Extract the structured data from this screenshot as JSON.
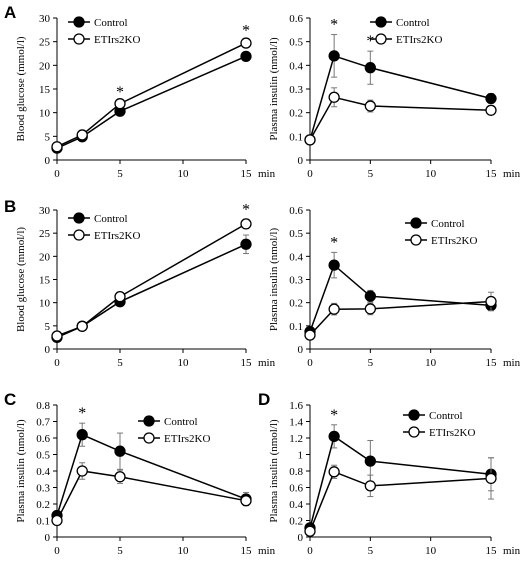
{
  "chart_data": [
    {
      "type": "line",
      "panel_label": "A",
      "ylabel": "Blood glucose (mmol/l)",
      "xunit": "min",
      "x": [
        0,
        2,
        5,
        15
      ],
      "xticks": [
        0,
        5,
        10,
        15
      ],
      "xlim": [
        0,
        15
      ],
      "ylim": [
        0,
        30
      ],
      "yticks": [
        0,
        5,
        10,
        15,
        20,
        25,
        30
      ],
      "ytick_labels": [
        "0",
        "5",
        "10",
        "15",
        "20",
        "25",
        "30"
      ],
      "legend": "top-left",
      "series": [
        {
          "name": "Control",
          "marker": "filled",
          "values": [
            2.5,
            4.9,
            10.3,
            21.9
          ],
          "errors": [
            0.2,
            0.3,
            0.4,
            0.5
          ]
        },
        {
          "name": "ETIrs2KO",
          "marker": "open",
          "values": [
            2.8,
            5.3,
            11.9,
            24.7
          ],
          "errors": [
            0.2,
            0.3,
            0.4,
            0.5
          ]
        }
      ],
      "significance": [
        {
          "x": 5,
          "label": "*"
        },
        {
          "x": 15,
          "label": "*"
        }
      ]
    },
    {
      "type": "line",
      "panel_label": "",
      "ylabel": "Plasma insulin (nmol/l)",
      "xunit": "min",
      "x": [
        0,
        2,
        5,
        15
      ],
      "xticks": [
        0,
        5,
        10,
        15
      ],
      "xlim": [
        0,
        15
      ],
      "ylim": [
        0,
        0.6
      ],
      "yticks": [
        0,
        0.1,
        0.2,
        0.3,
        0.4,
        0.5,
        0.6
      ],
      "ytick_labels": [
        "0",
        "0.1",
        "0.2",
        "0.3",
        "0.4",
        "0.5",
        "0.6"
      ],
      "legend": "top-right",
      "series": [
        {
          "name": "Control",
          "marker": "filled",
          "values": [
            0.085,
            0.44,
            0.39,
            0.26
          ],
          "errors": [
            0.01,
            0.09,
            0.07,
            0.02
          ]
        },
        {
          "name": "ETIrs2KO",
          "marker": "open",
          "values": [
            0.085,
            0.265,
            0.228,
            0.21
          ],
          "errors": [
            0.01,
            0.04,
            0.025,
            0.01
          ]
        }
      ],
      "significance": [
        {
          "x": 2,
          "label": "*"
        },
        {
          "x": 5,
          "label": "*"
        }
      ]
    },
    {
      "type": "line",
      "panel_label": "B",
      "ylabel": "Blood glucose (mmol/l)",
      "xunit": "min",
      "x": [
        0,
        2,
        5,
        15
      ],
      "xticks": [
        0,
        5,
        10,
        15
      ],
      "xlim": [
        0,
        15
      ],
      "ylim": [
        0,
        30
      ],
      "yticks": [
        0,
        5,
        10,
        15,
        20,
        25,
        30
      ],
      "ytick_labels": [
        "0",
        "5",
        "10",
        "15",
        "20",
        "25",
        "30"
      ],
      "legend": "top-left",
      "series": [
        {
          "name": "Control",
          "marker": "filled",
          "values": [
            2.5,
            4.9,
            10.2,
            22.6
          ],
          "errors": [
            0.2,
            0.3,
            0.5,
            2.0
          ]
        },
        {
          "name": "ETIrs2KO",
          "marker": "open",
          "values": [
            2.8,
            4.9,
            11.3,
            27.0
          ],
          "errors": [
            0.2,
            0.3,
            0.5,
            1.0
          ]
        }
      ],
      "significance": [
        {
          "x": 15,
          "label": "*"
        }
      ]
    },
    {
      "type": "line",
      "panel_label": "",
      "ylabel": "Plasma insulin (nmol/l)",
      "xunit": "min",
      "x": [
        0,
        2,
        5,
        15
      ],
      "xticks": [
        0,
        5,
        10,
        15
      ],
      "xlim": [
        0,
        15
      ],
      "ylim": [
        0,
        0.6
      ],
      "yticks": [
        0,
        0.1,
        0.2,
        0.3,
        0.4,
        0.5,
        0.6
      ],
      "ytick_labels": [
        "0",
        "0.1",
        "0.2",
        "0.3",
        "0.4",
        "0.5",
        "0.6"
      ],
      "legend": "top-right",
      "series": [
        {
          "name": "Control",
          "marker": "filled",
          "values": [
            0.075,
            0.362,
            0.228,
            0.188
          ],
          "errors": [
            0.015,
            0.055,
            0.025,
            0.02
          ]
        },
        {
          "name": "ETIrs2KO",
          "marker": "open",
          "values": [
            0.06,
            0.172,
            0.173,
            0.205
          ],
          "errors": [
            0.01,
            0.025,
            0.025,
            0.04
          ]
        }
      ],
      "significance": [
        {
          "x": 2,
          "label": "*"
        }
      ]
    },
    {
      "type": "line",
      "panel_label": "C",
      "ylabel": "Plasma insulin (nmol/l)",
      "xunit": "min",
      "x": [
        0,
        2,
        5,
        15
      ],
      "xticks": [
        0,
        5,
        10,
        15
      ],
      "xlim": [
        0,
        15
      ],
      "ylim": [
        0,
        0.8
      ],
      "yticks": [
        0,
        0.1,
        0.2,
        0.3,
        0.4,
        0.5,
        0.6,
        0.7,
        0.8
      ],
      "ytick_labels": [
        "0",
        "0.1",
        "0.2",
        "0.3",
        "0.4",
        "0.5",
        "0.6",
        "0.7",
        "0.8"
      ],
      "legend": "top-right",
      "series": [
        {
          "name": "Control",
          "marker": "filled",
          "values": [
            0.13,
            0.62,
            0.52,
            0.23
          ],
          "errors": [
            0.02,
            0.07,
            0.11,
            0.04
          ]
        },
        {
          "name": "ETIrs2KO",
          "marker": "open",
          "values": [
            0.1,
            0.4,
            0.365,
            0.22
          ],
          "errors": [
            0.01,
            0.05,
            0.04,
            0.02
          ]
        }
      ],
      "significance": [
        {
          "x": 2,
          "label": "*"
        }
      ]
    },
    {
      "type": "line",
      "panel_label": "D",
      "ylabel": "Plasma insulin (nmol/l)",
      "xunit": "min",
      "x": [
        0,
        2,
        5,
        15
      ],
      "xticks": [
        0,
        5,
        10,
        15
      ],
      "xlim": [
        0,
        15
      ],
      "ylim": [
        0,
        1.6
      ],
      "yticks": [
        0,
        0.2,
        0.4,
        0.6,
        0.8,
        1.0,
        1.2,
        1.4,
        1.6
      ],
      "ytick_labels": [
        "0",
        "0.2",
        "0.4",
        "0.6",
        "0.8",
        "1",
        "1.2",
        "1.4",
        "1.6"
      ],
      "legend": "top-right",
      "series": [
        {
          "name": "Control",
          "marker": "filled",
          "values": [
            0.11,
            1.22,
            0.92,
            0.76
          ],
          "errors": [
            0.03,
            0.14,
            0.25,
            0.2
          ]
        },
        {
          "name": "ETIrs2KO",
          "marker": "open",
          "values": [
            0.07,
            0.79,
            0.62,
            0.71
          ],
          "errors": [
            0.01,
            0.08,
            0.13,
            0.25
          ]
        }
      ],
      "significance": [
        {
          "x": 2,
          "label": "*"
        }
      ]
    }
  ]
}
